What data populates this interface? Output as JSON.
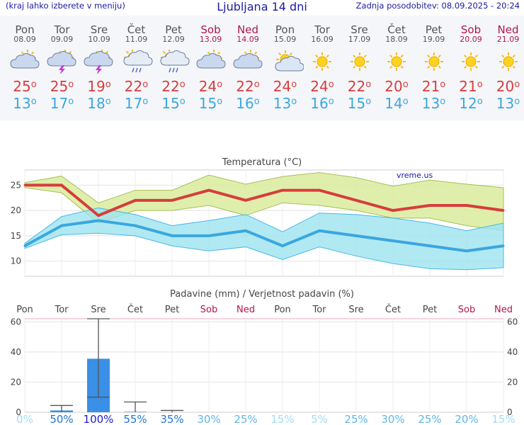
{
  "header": {
    "left_note": "(kraj lahko izberete v meniju)",
    "title": "Ljubljana 14 dni",
    "updated": "Zadnja posodobitev: 08.09.2025 - 20:24"
  },
  "days": [
    {
      "name": "Pon",
      "date": "08.09",
      "icon": "partly-cloudy-icon",
      "hi": "25",
      "lo": "13",
      "weekend": false
    },
    {
      "name": "Tor",
      "date": "09.09",
      "icon": "thunderstorm-icon",
      "hi": "25",
      "lo": "17",
      "weekend": false
    },
    {
      "name": "Sre",
      "date": "10.09",
      "icon": "thunderstorm-icon",
      "hi": "19",
      "lo": "18",
      "weekend": false
    },
    {
      "name": "Čet",
      "date": "11.09",
      "icon": "sun-rain-icon",
      "hi": "22",
      "lo": "17",
      "weekend": false
    },
    {
      "name": "Pet",
      "date": "12.09",
      "icon": "sun-rain-icon",
      "hi": "22",
      "lo": "15",
      "weekend": false
    },
    {
      "name": "Sob",
      "date": "13.09",
      "icon": "partly-cloudy-icon",
      "hi": "24",
      "lo": "15",
      "weekend": true
    },
    {
      "name": "Ned",
      "date": "14.09",
      "icon": "partly-cloudy-icon",
      "hi": "22",
      "lo": "16",
      "weekend": true
    },
    {
      "name": "Pon",
      "date": "15.09",
      "icon": "sun-cloud-icon",
      "hi": "24",
      "lo": "13",
      "weekend": false
    },
    {
      "name": "Tor",
      "date": "16.09",
      "icon": "sun-icon",
      "hi": "24",
      "lo": "16",
      "weekend": false
    },
    {
      "name": "Sre",
      "date": "17.09",
      "icon": "sun-icon",
      "hi": "22",
      "lo": "15",
      "weekend": false
    },
    {
      "name": "Čet",
      "date": "18.09",
      "icon": "sun-icon",
      "hi": "20",
      "lo": "14",
      "weekend": false
    },
    {
      "name": "Pet",
      "date": "19.09",
      "icon": "sun-icon",
      "hi": "21",
      "lo": "13",
      "weekend": false
    },
    {
      "name": "Sob",
      "date": "20.09",
      "icon": "sun-icon",
      "hi": "21",
      "lo": "12",
      "weekend": true
    },
    {
      "name": "Ned",
      "date": "21.09",
      "icon": "sun-icon",
      "hi": "20",
      "lo": "13",
      "weekend": true
    }
  ],
  "colors": {
    "high": "#d73d3d",
    "low": "#3aa7df",
    "weekend": "#b0164d",
    "high_band": "#d9ec9c",
    "low_band": "#9ee3f0",
    "overlap": "#8dd68d",
    "precip_bar": "#3a8fe6"
  },
  "chart_data": [
    {
      "type": "line",
      "title": "Temperatura (°C)",
      "watermark": "vreme.us",
      "categories": [
        "Pon",
        "Tor",
        "Sre",
        "Čet",
        "Pet",
        "Sob",
        "Ned",
        "Pon",
        "Tor",
        "Sre",
        "Čet",
        "Pet",
        "Sob",
        "Ned"
      ],
      "ylim": [
        7,
        28
      ],
      "yticks": [
        10,
        15,
        20,
        25
      ],
      "series": [
        {
          "name": "max",
          "values": [
            25,
            25,
            19,
            22,
            22,
            24,
            22,
            24,
            24,
            22,
            20,
            21,
            21,
            20
          ]
        },
        {
          "name": "min",
          "values": [
            13,
            17,
            18,
            17,
            15,
            15,
            16,
            13,
            16,
            15,
            14,
            13,
            12,
            13
          ]
        }
      ],
      "bands": [
        {
          "lower": [
            24.5,
            23.5,
            17.5,
            20,
            20,
            21,
            19,
            21.5,
            21,
            20,
            18.5,
            18.5,
            17,
            16
          ],
          "upper": [
            25.5,
            26.8,
            21.5,
            24,
            24,
            27,
            25.2,
            26.7,
            27.5,
            26.5,
            24.8,
            26,
            25.2,
            24.5
          ]
        },
        {
          "lower": [
            12.5,
            15.2,
            15.5,
            15,
            13,
            12,
            12.8,
            10.3,
            12.8,
            11,
            9.5,
            8.5,
            8.3,
            8.7
          ],
          "upper": [
            13.5,
            18.8,
            20.5,
            19.2,
            17,
            18,
            19.2,
            15.8,
            19.5,
            19.2,
            18.5,
            17.5,
            16,
            17.5
          ]
        }
      ]
    },
    {
      "type": "bar",
      "title": "Padavine (mm) / Verjetnost padavin (%)",
      "categories": [
        "Pon",
        "Tor",
        "Sre",
        "Čet",
        "Pet",
        "Sob",
        "Ned",
        "Pon",
        "Tor",
        "Sre",
        "Čet",
        "Pet",
        "Sob",
        "Ned"
      ],
      "ylim": [
        0,
        62
      ],
      "yticks": [
        0,
        20,
        40,
        60
      ],
      "values": [
        0,
        1.2,
        35.5,
        0.3,
        0,
        0,
        0,
        0,
        0,
        0,
        0,
        0,
        0,
        0
      ],
      "error_min": [
        null,
        0,
        10,
        0,
        0,
        null,
        null,
        null,
        null,
        null,
        null,
        null,
        null,
        null
      ],
      "error_max": [
        null,
        4.5,
        62,
        6.8,
        1.2,
        null,
        null,
        null,
        null,
        null,
        null,
        null,
        null,
        null
      ],
      "probability": [
        "0%",
        "50%",
        "100%",
        "55%",
        "35%",
        "30%",
        "25%",
        "15%",
        "5%",
        "25%",
        "30%",
        "25%",
        "20%",
        "15%"
      ]
    }
  ]
}
